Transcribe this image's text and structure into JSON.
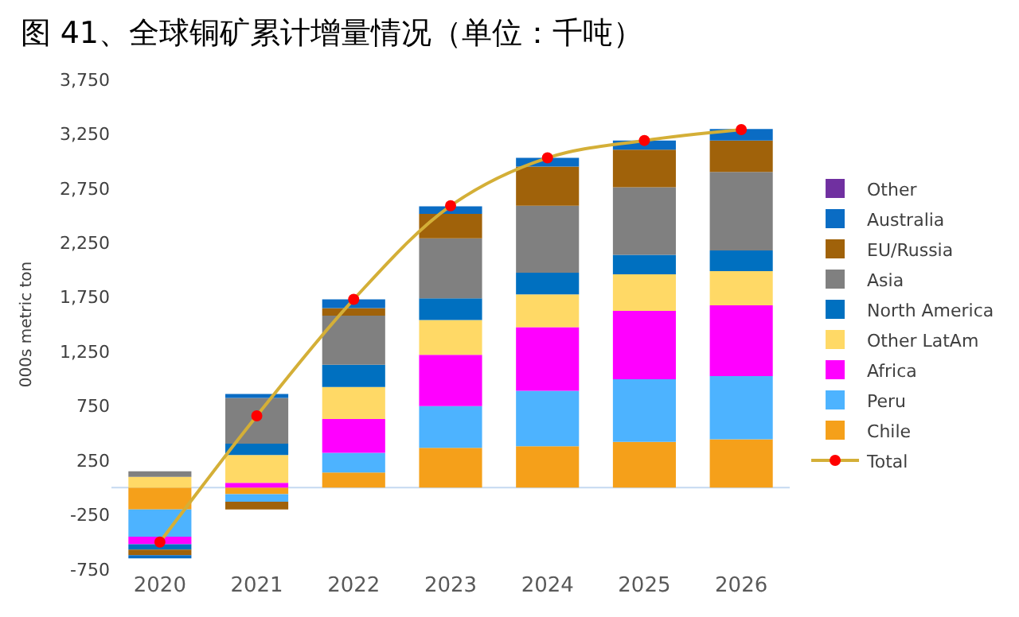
{
  "chart_data": {
    "type": "bar",
    "stacked": true,
    "title": "图 41、全球铜矿累计增量情况（单位：千吨）",
    "ylabel": "000s metric ton",
    "categories": [
      "2020",
      "2021",
      "2022",
      "2023",
      "2024",
      "2025",
      "2026"
    ],
    "series": [
      {
        "name": "Chile",
        "color": "#f5a01a",
        "values": [
          -200,
          -60,
          140,
          365,
          380,
          420,
          445
        ]
      },
      {
        "name": "Peru",
        "color": "#4db3ff",
        "values": [
          -250,
          -70,
          180,
          385,
          510,
          575,
          580
        ]
      },
      {
        "name": "Africa",
        "color": "#ff00ff",
        "values": [
          -70,
          45,
          310,
          470,
          585,
          630,
          650
        ]
      },
      {
        "name": "Other LatAm",
        "color": "#ffd966",
        "values": [
          100,
          255,
          295,
          320,
          300,
          335,
          315
        ]
      },
      {
        "name": "North America",
        "color": "#0070c0",
        "values": [
          -50,
          105,
          205,
          200,
          200,
          180,
          190
        ]
      },
      {
        "name": "Asia",
        "color": "#808080",
        "values": [
          50,
          420,
          450,
          550,
          615,
          620,
          720
        ]
      },
      {
        "name": "EU/Russia",
        "color": "#a0620a",
        "values": [
          -50,
          -70,
          70,
          225,
          360,
          345,
          290
        ]
      },
      {
        "name": "Australia",
        "color": "#0a6cc4",
        "values": [
          -30,
          35,
          80,
          70,
          80,
          85,
          105
        ]
      },
      {
        "name": "Other",
        "color": "#7030a0",
        "values": [
          0,
          0,
          0,
          0,
          0,
          0,
          0
        ]
      },
      {
        "name": "Total",
        "type": "line",
        "color": "#d4af37",
        "colors": [
          "#ff0000",
          "#ff0000",
          "#ff0000",
          "#ff0000",
          "#ff0000",
          "#ff0000",
          "#ff0000"
        ],
        "marker": "circle",
        "values": [
          -500,
          660,
          1730,
          2590,
          3030,
          3190,
          3290
        ]
      }
    ],
    "ylim": [
      -750,
      3750
    ],
    "yticks": [
      {
        "value": -750,
        "label": "-750"
      },
      {
        "value": -250,
        "label": "-250"
      },
      {
        "value": 250,
        "label": "250"
      },
      {
        "value": 750,
        "label": "750"
      },
      {
        "value": 1250,
        "label": "1,250"
      },
      {
        "value": 1750,
        "label": "1,750"
      },
      {
        "value": 2250,
        "label": "2,250"
      },
      {
        "value": 2750,
        "label": "2,750"
      },
      {
        "value": 3250,
        "label": "3,250"
      },
      {
        "value": 3750,
        "label": "3,750"
      }
    ],
    "ref_lines": [
      {
        "axis": "y",
        "value": 0,
        "color": "#c5d9f1"
      }
    ],
    "grid": false,
    "legend": "right"
  }
}
